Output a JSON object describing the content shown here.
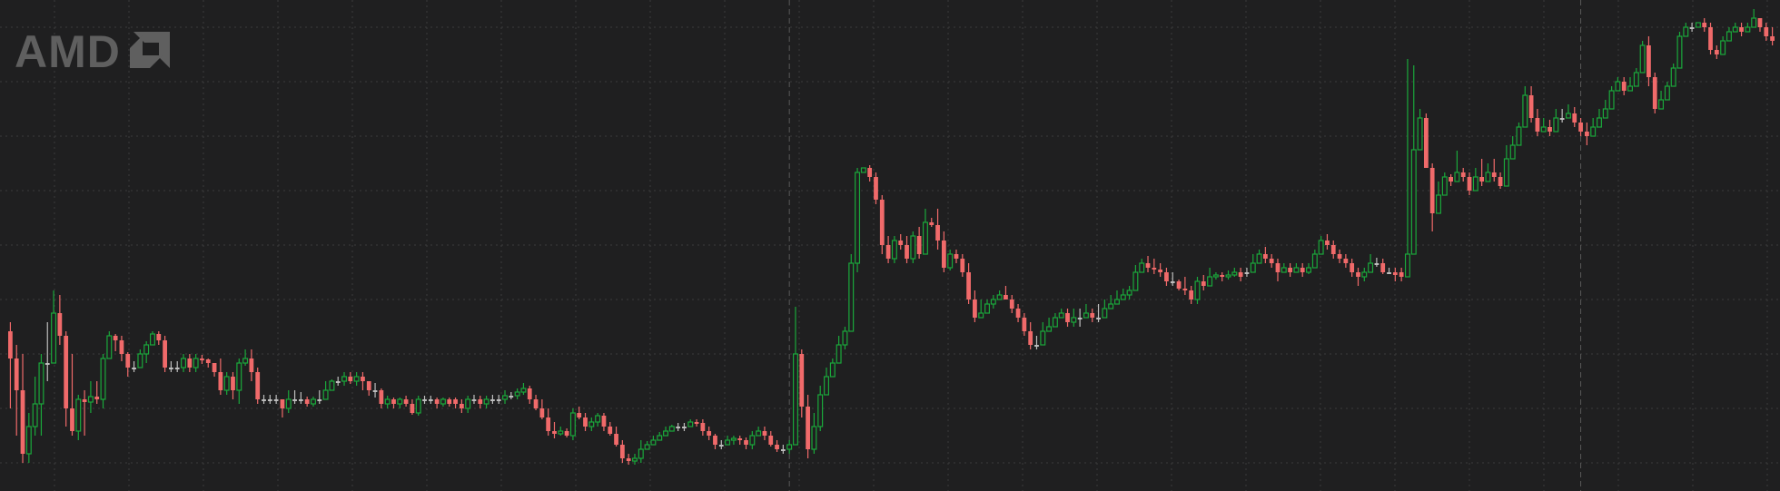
{
  "logo": {
    "text": "AMD",
    "name": "amd-logo",
    "color": "#5f5f5f"
  },
  "colors": {
    "background": "#1f1f20",
    "up": "#1aa83b",
    "down": "#f06a6a",
    "doji": "#bdbdbd",
    "grid": "#3b3b3b",
    "session_separator": "#585858"
  },
  "chart_data": {
    "type": "candlestick",
    "title": "",
    "xlabel": "",
    "ylabel": "",
    "grid": true,
    "ylim": [
      0,
      540
    ],
    "y_inverted": true,
    "session_breaks_at_index": [
      126,
      254
    ],
    "candles": [
      [
        365,
        395,
        450,
        355
      ],
      [
        395,
        430,
        480,
        380
      ],
      [
        430,
        500,
        510,
        390
      ],
      [
        500,
        470,
        510,
        455
      ],
      [
        470,
        445,
        480,
        415
      ],
      [
        445,
        400,
        480,
        390
      ],
      [
        400,
        400,
        420,
        355
      ],
      [
        400,
        345,
        350,
        320
      ],
      [
        345,
        370,
        380,
        325
      ],
      [
        370,
        450,
        470,
        365
      ],
      [
        450,
        475,
        480,
        390
      ],
      [
        475,
        440,
        485,
        435
      ],
      [
        440,
        443,
        480,
        430
      ],
      [
        443,
        437,
        455,
        420
      ],
      [
        437,
        440,
        445,
        420
      ],
      [
        440,
        395,
        450,
        390
      ],
      [
        395,
        370,
        385,
        365
      ],
      [
        370,
        375,
        387,
        368
      ],
      [
        375,
        390,
        398,
        370
      ],
      [
        390,
        405,
        415,
        388
      ],
      [
        405,
        405,
        410,
        398
      ],
      [
        405,
        390,
        405,
        385
      ],
      [
        390,
        380,
        400,
        376
      ],
      [
        380,
        368,
        375,
        365
      ],
      [
        368,
        375,
        380,
        365
      ],
      [
        375,
        405,
        410,
        370
      ],
      [
        405,
        405,
        410,
        398
      ],
      [
        405,
        405,
        410,
        398
      ],
      [
        405,
        395,
        410,
        390
      ],
      [
        395,
        405,
        410,
        390
      ],
      [
        405,
        395,
        410,
        390
      ],
      [
        395,
        396,
        401,
        391
      ],
      [
        396,
        400,
        405,
        395
      ],
      [
        400,
        410,
        415,
        405
      ],
      [
        410,
        430,
        435,
        395
      ],
      [
        430,
        415,
        435,
        410
      ],
      [
        415,
        430,
        440,
        410
      ],
      [
        430,
        400,
        445,
        395
      ],
      [
        400,
        395,
        403,
        385
      ],
      [
        395,
        410,
        420,
        385
      ],
      [
        410,
        440,
        445,
        405
      ],
      [
        440,
        440,
        445,
        435
      ],
      [
        440,
        440,
        445,
        435
      ],
      [
        440,
        440,
        445,
        435
      ],
      [
        440,
        450,
        460,
        440
      ],
      [
        450,
        440,
        455,
        430
      ],
      [
        440,
        440,
        445,
        430
      ],
      [
        440,
        440,
        445,
        432
      ],
      [
        440,
        445,
        448,
        437
      ],
      [
        445,
        440,
        448,
        437
      ],
      [
        440,
        440,
        445,
        430
      ],
      [
        440,
        430,
        432,
        420
      ],
      [
        430,
        420,
        425,
        418
      ],
      [
        420,
        420,
        425,
        415
      ],
      [
        420,
        415,
        425,
        410
      ],
      [
        415,
        420,
        423,
        410
      ],
      [
        420,
        415,
        425,
        410
      ],
      [
        415,
        420,
        430,
        410
      ],
      [
        420,
        430,
        436,
        420
      ],
      [
        430,
        430,
        438,
        422
      ],
      [
        430,
        445,
        450,
        428
      ],
      [
        445,
        440,
        450,
        436
      ],
      [
        440,
        445,
        450,
        438
      ],
      [
        445,
        440,
        450,
        438
      ],
      [
        440,
        445,
        448,
        436
      ],
      [
        445,
        455,
        457,
        440
      ],
      [
        455,
        440,
        458,
        436
      ],
      [
        440,
        440,
        445,
        436
      ],
      [
        440,
        440,
        445,
        436
      ],
      [
        440,
        445,
        450,
        438
      ],
      [
        445,
        440,
        448,
        438
      ],
      [
        440,
        445,
        448,
        438
      ],
      [
        440,
        445,
        450,
        438
      ],
      [
        445,
        450,
        455,
        440
      ],
      [
        450,
        440,
        455,
        436
      ],
      [
        440,
        440,
        445,
        435
      ],
      [
        440,
        445,
        450,
        436
      ],
      [
        445,
        440,
        450,
        436
      ],
      [
        440,
        440,
        445,
        435
      ],
      [
        440,
        440,
        445,
        435
      ],
      [
        440,
        436,
        445,
        430
      ],
      [
        436,
        436,
        440,
        432
      ],
      [
        436,
        432,
        440,
        428
      ],
      [
        432,
        428,
        435,
        422
      ],
      [
        428,
        440,
        445,
        425
      ],
      [
        440,
        450,
        452,
        435
      ],
      [
        450,
        460,
        462,
        440
      ],
      [
        460,
        475,
        480,
        450
      ],
      [
        475,
        478,
        483,
        465
      ],
      [
        478,
        475,
        480,
        470
      ],
      [
        475,
        480,
        482,
        472
      ],
      [
        480,
        455,
        485,
        450
      ],
      [
        455,
        460,
        462,
        448
      ],
      [
        460,
        470,
        475,
        455
      ],
      [
        470,
        465,
        475,
        460
      ],
      [
        465,
        458,
        470,
        455
      ],
      [
        458,
        470,
        475,
        455
      ],
      [
        470,
        478,
        480,
        465
      ],
      [
        478,
        490,
        492,
        470
      ],
      [
        490,
        505,
        510,
        485
      ],
      [
        505,
        508,
        512,
        500
      ],
      [
        508,
        505,
        512,
        500
      ],
      [
        505,
        495,
        510,
        485
      ],
      [
        495,
        490,
        495,
        486
      ],
      [
        490,
        485,
        490,
        480
      ],
      [
        485,
        480,
        485,
        476
      ],
      [
        480,
        475,
        480,
        470
      ],
      [
        475,
        470,
        475,
        468
      ],
      [
        470,
        470,
        475,
        466
      ],
      [
        470,
        470,
        475,
        466
      ],
      [
        470,
        465,
        470,
        462
      ],
      [
        465,
        466,
        470,
        462
      ],
      [
        466,
        475,
        480,
        462
      ],
      [
        475,
        480,
        485,
        470
      ],
      [
        480,
        490,
        495,
        478
      ],
      [
        490,
        490,
        495,
        485
      ],
      [
        490,
        485,
        490,
        480
      ],
      [
        485,
        483,
        490,
        480
      ],
      [
        483,
        485,
        490,
        480
      ],
      [
        485,
        490,
        495,
        482
      ],
      [
        490,
        480,
        495,
        475
      ],
      [
        480,
        475,
        480,
        470
      ],
      [
        475,
        480,
        485,
        470
      ],
      [
        480,
        490,
        492,
        475
      ],
      [
        490,
        495,
        498,
        485
      ],
      [
        495,
        495,
        500,
        490
      ],
      [
        495,
        490,
        500,
        485
      ],
      [
        490,
        390,
        338,
        395
      ],
      [
        390,
        448,
        460,
        385
      ],
      [
        448,
        495,
        505,
        435
      ],
      [
        495,
        470,
        500,
        455
      ],
      [
        470,
        435,
        475,
        425
      ],
      [
        435,
        415,
        420,
        405
      ],
      [
        415,
        400,
        410,
        395
      ],
      [
        400,
        380,
        390,
        370
      ],
      [
        380,
        365,
        385,
        360
      ],
      [
        365,
        290,
        305,
        280
      ],
      [
        290,
        190,
        300,
        185
      ],
      [
        190,
        185,
        190,
        185
      ],
      [
        185,
        195,
        200,
        182
      ],
      [
        195,
        220,
        225,
        190
      ],
      [
        220,
        270,
        280,
        215
      ],
      [
        270,
        285,
        290,
        260
      ],
      [
        285,
        265,
        290,
        260
      ],
      [
        265,
        270,
        275,
        258
      ],
      [
        270,
        285,
        290,
        260
      ],
      [
        285,
        260,
        290,
        255
      ],
      [
        260,
        280,
        285,
        250
      ],
      [
        280,
        245,
        255,
        230
      ],
      [
        245,
        248,
        250,
        240
      ],
      [
        248,
        265,
        275,
        230
      ],
      [
        265,
        295,
        300,
        255
      ],
      [
        295,
        280,
        298,
        275
      ],
      [
        280,
        285,
        290,
        275
      ],
      [
        285,
        300,
        305,
        280
      ],
      [
        300,
        330,
        335,
        290
      ],
      [
        330,
        350,
        355,
        320
      ],
      [
        350,
        345,
        350,
        330
      ],
      [
        345,
        335,
        345,
        330
      ],
      [
        335,
        330,
        340,
        325
      ],
      [
        330,
        325,
        330,
        320
      ],
      [
        325,
        330,
        330,
        315
      ],
      [
        330,
        340,
        345,
        325
      ],
      [
        340,
        350,
        355,
        335
      ],
      [
        350,
        365,
        370,
        345
      ],
      [
        365,
        380,
        385,
        355
      ],
      [
        380,
        380,
        385,
        370
      ],
      [
        380,
        365,
        370,
        355
      ],
      [
        365,
        360,
        365,
        350
      ],
      [
        360,
        350,
        355,
        345
      ],
      [
        350,
        345,
        350,
        340
      ],
      [
        345,
        355,
        360,
        340
      ],
      [
        355,
        350,
        360,
        340
      ],
      [
        350,
        350,
        360,
        340
      ],
      [
        350,
        345,
        350,
        335
      ],
      [
        345,
        350,
        355,
        340
      ],
      [
        350,
        350,
        355,
        335
      ],
      [
        350,
        340,
        345,
        330
      ],
      [
        340,
        335,
        340,
        325
      ],
      [
        335,
        330,
        335,
        320
      ],
      [
        330,
        325,
        330,
        318
      ],
      [
        325,
        320,
        330,
        315
      ],
      [
        320,
        300,
        305,
        292
      ],
      [
        300,
        290,
        295,
        285
      ],
      [
        290,
        295,
        300,
        282
      ],
      [
        295,
        297,
        302,
        285
      ],
      [
        297,
        300,
        305,
        290
      ],
      [
        300,
        310,
        315,
        295
      ],
      [
        310,
        310,
        315,
        300
      ],
      [
        310,
        318,
        320,
        308
      ],
      [
        318,
        320,
        325,
        305
      ],
      [
        320,
        330,
        335,
        315
      ],
      [
        330,
        310,
        335,
        305
      ],
      [
        310,
        315,
        320,
        303
      ],
      [
        315,
        305,
        315,
        295
      ],
      [
        305,
        303,
        308,
        300
      ],
      [
        303,
        305,
        310,
        300
      ],
      [
        305,
        303,
        308,
        298
      ],
      [
        303,
        300,
        305,
        295
      ],
      [
        300,
        305,
        310,
        295
      ],
      [
        300,
        300,
        305,
        295
      ],
      [
        300,
        290,
        295,
        280
      ],
      [
        290,
        280,
        285,
        275
      ],
      [
        280,
        285,
        290,
        272
      ],
      [
        285,
        290,
        295,
        280
      ],
      [
        290,
        300,
        310,
        285
      ],
      [
        300,
        295,
        300,
        290
      ],
      [
        295,
        300,
        305,
        290
      ],
      [
        300,
        295,
        300,
        290
      ],
      [
        295,
        300,
        305,
        290
      ],
      [
        300,
        295,
        302,
        290
      ],
      [
        295,
        280,
        285,
        275
      ],
      [
        280,
        265,
        270,
        260
      ],
      [
        265,
        270,
        275,
        258
      ],
      [
        270,
        280,
        285,
        265
      ],
      [
        280,
        285,
        290,
        275
      ],
      [
        285,
        290,
        295,
        280
      ],
      [
        290,
        300,
        305,
        285
      ],
      [
        300,
        305,
        315,
        295
      ],
      [
        305,
        300,
        310,
        295
      ],
      [
        300,
        290,
        300,
        280
      ],
      [
        290,
        290,
        294,
        284
      ],
      [
        290,
        300,
        302,
        285
      ],
      [
        300,
        300,
        302,
        295
      ],
      [
        300,
        303,
        310,
        295
      ],
      [
        300,
        305,
        310,
        295
      ],
      [
        305,
        280,
        290,
        65
      ],
      [
        280,
        165,
        168,
        72
      ],
      [
        165,
        130,
        140,
        120
      ],
      [
        130,
        185,
        180,
        125
      ],
      [
        185,
        235,
        255,
        180
      ],
      [
        235,
        215,
        225,
        200
      ],
      [
        215,
        195,
        200,
        190
      ],
      [
        195,
        200,
        205,
        192
      ],
      [
        200,
        190,
        195,
        166
      ],
      [
        190,
        195,
        200,
        185
      ],
      [
        195,
        210,
        215,
        190
      ],
      [
        210,
        195,
        200,
        185
      ],
      [
        195,
        200,
        205,
        175
      ],
      [
        200,
        190,
        195,
        180
      ],
      [
        190,
        195,
        200,
        175
      ],
      [
        195,
        205,
        208,
        190
      ],
      [
        205,
        175,
        180,
        160
      ],
      [
        175,
        160,
        165,
        150
      ],
      [
        160,
        140,
        145,
        135
      ],
      [
        140,
        105,
        110,
        95
      ],
      [
        105,
        130,
        135,
        95
      ],
      [
        130,
        145,
        150,
        120
      ],
      [
        145,
        140,
        145,
        130
      ],
      [
        140,
        145,
        150,
        132
      ],
      [
        145,
        130,
        135,
        120
      ],
      [
        130,
        130,
        135,
        120
      ],
      [
        130,
        125,
        130,
        115
      ],
      [
        125,
        135,
        140,
        118
      ],
      [
        135,
        145,
        150,
        130
      ],
      [
        145,
        150,
        160,
        135
      ],
      [
        150,
        140,
        145,
        130
      ],
      [
        140,
        130,
        135,
        120
      ],
      [
        130,
        120,
        125,
        110
      ],
      [
        120,
        100,
        105,
        95
      ],
      [
        100,
        90,
        95,
        85
      ],
      [
        90,
        100,
        105,
        85
      ],
      [
        100,
        95,
        100,
        85
      ],
      [
        95,
        80,
        85,
        75
      ],
      [
        80,
        50,
        55,
        45
      ],
      [
        50,
        85,
        95,
        40
      ],
      [
        85,
        120,
        125,
        80
      ],
      [
        120,
        110,
        115,
        100
      ],
      [
        110,
        95,
        100,
        90
      ],
      [
        95,
        75,
        80,
        70
      ],
      [
        75,
        40,
        45,
        35
      ],
      [
        40,
        30,
        40,
        25
      ],
      [
        30,
        30,
        35,
        25
      ],
      [
        30,
        25,
        30,
        25
      ],
      [
        25,
        30,
        35,
        20
      ],
      [
        30,
        55,
        60,
        25
      ],
      [
        55,
        60,
        65,
        50
      ],
      [
        60,
        45,
        50,
        40
      ],
      [
        45,
        35,
        40,
        30
      ],
      [
        35,
        30,
        35,
        25
      ],
      [
        30,
        35,
        40,
        25
      ],
      [
        35,
        30,
        35,
        25
      ],
      [
        30,
        20,
        30,
        10
      ],
      [
        20,
        30,
        35,
        25
      ],
      [
        30,
        40,
        45,
        25
      ],
      [
        40,
        45,
        50,
        30
      ]
    ]
  }
}
